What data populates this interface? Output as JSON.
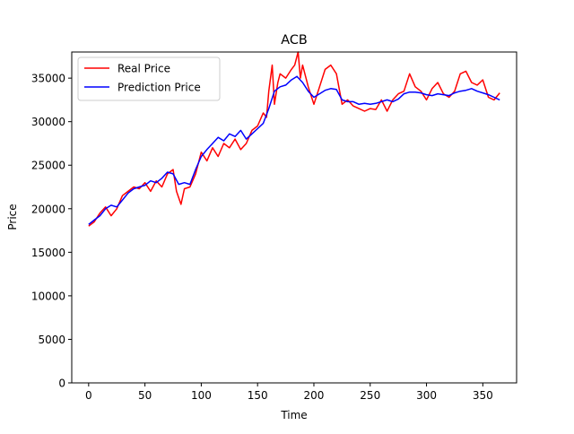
{
  "chart_data": {
    "type": "line",
    "title": "ACB",
    "xlabel": "Time",
    "ylabel": "Price",
    "xlim": [
      -15,
      380
    ],
    "ylim": [
      0,
      38000
    ],
    "x_ticks": [
      0,
      50,
      100,
      150,
      200,
      250,
      300,
      350
    ],
    "y_ticks": [
      0,
      5000,
      10000,
      15000,
      20000,
      25000,
      30000,
      35000
    ],
    "legend_position": "top-left",
    "grid": false,
    "series": [
      {
        "name": "Real Price",
        "color": "#ff0000",
        "x": [
          0,
          5,
          10,
          15,
          20,
          25,
          30,
          35,
          40,
          45,
          50,
          55,
          60,
          65,
          70,
          75,
          78,
          82,
          85,
          90,
          95,
          100,
          105,
          110,
          115,
          120,
          125,
          130,
          135,
          140,
          145,
          150,
          155,
          158,
          160,
          163,
          165,
          168,
          170,
          175,
          180,
          183,
          186,
          188,
          190,
          195,
          200,
          205,
          210,
          215,
          220,
          225,
          230,
          235,
          240,
          245,
          250,
          255,
          260,
          265,
          270,
          275,
          280,
          285,
          290,
          295,
          300,
          305,
          310,
          315,
          320,
          325,
          330,
          335,
          340,
          345,
          350,
          355,
          360,
          365
        ],
        "y": [
          18000,
          18500,
          19500,
          20200,
          19200,
          20000,
          21500,
          22000,
          22500,
          22300,
          23000,
          22000,
          23200,
          22500,
          24000,
          24500,
          22000,
          20500,
          22300,
          22500,
          24000,
          26500,
          25500,
          27000,
          26000,
          27500,
          27000,
          28000,
          26800,
          27500,
          29000,
          29500,
          31000,
          30500,
          33500,
          36500,
          32000,
          34500,
          35500,
          35000,
          36000,
          36500,
          38000,
          35000,
          36500,
          34000,
          32000,
          34000,
          36000,
          36500,
          35500,
          32000,
          32500,
          31800,
          31500,
          31200,
          31500,
          31400,
          32500,
          31200,
          32500,
          33200,
          33500,
          35500,
          34000,
          33500,
          32500,
          33800,
          34500,
          33200,
          32800,
          33500,
          35500,
          35800,
          34500,
          34200,
          34800,
          32800,
          32500,
          33300
        ]
      },
      {
        "name": "Prediction Price",
        "color": "#0000ff",
        "x": [
          0,
          5,
          10,
          15,
          20,
          25,
          30,
          35,
          40,
          45,
          50,
          55,
          60,
          65,
          70,
          75,
          80,
          85,
          90,
          95,
          100,
          105,
          110,
          115,
          120,
          125,
          130,
          135,
          140,
          145,
          150,
          155,
          160,
          165,
          170,
          175,
          180,
          185,
          190,
          195,
          200,
          205,
          210,
          215,
          220,
          225,
          230,
          235,
          240,
          245,
          250,
          255,
          260,
          265,
          270,
          275,
          280,
          285,
          290,
          295,
          300,
          305,
          310,
          315,
          320,
          325,
          330,
          335,
          340,
          345,
          350,
          355,
          360,
          365
        ],
        "y": [
          18200,
          18700,
          19200,
          20000,
          20400,
          20200,
          21000,
          21800,
          22300,
          22500,
          22700,
          23200,
          23000,
          23500,
          24200,
          24000,
          22800,
          23000,
          22800,
          24500,
          26000,
          26800,
          27500,
          28200,
          27800,
          28600,
          28300,
          29000,
          28000,
          28600,
          29200,
          29800,
          31500,
          33500,
          34000,
          34200,
          34800,
          35200,
          34500,
          33500,
          32800,
          33200,
          33600,
          33800,
          33700,
          32500,
          32300,
          32300,
          32000,
          32100,
          32000,
          32100,
          32300,
          32500,
          32300,
          32600,
          33200,
          33400,
          33400,
          33300,
          33100,
          33000,
          33200,
          33100,
          33000,
          33300,
          33500,
          33600,
          33800,
          33500,
          33300,
          33100,
          32800,
          32500
        ]
      }
    ]
  }
}
